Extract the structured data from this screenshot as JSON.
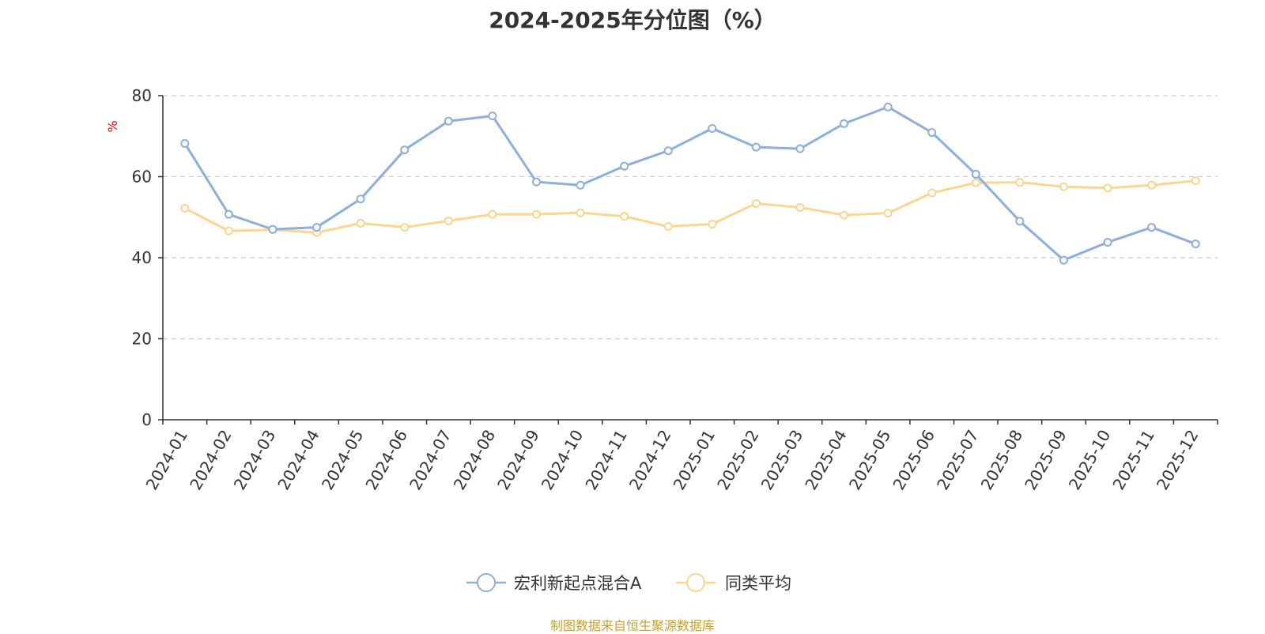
{
  "chart_data": {
    "type": "line",
    "title": "2024-2025年分位图（%）",
    "ylabel": "%",
    "xlabel": "",
    "ylim": [
      0,
      80
    ],
    "yticks": [
      0,
      20,
      40,
      60,
      80
    ],
    "grid": true,
    "legend_position": "bottom-center",
    "categories": [
      "2024-01",
      "2024-02",
      "2024-03",
      "2024-04",
      "2024-05",
      "2024-06",
      "2024-07",
      "2024-08",
      "2024-09",
      "2024-10",
      "2024-11",
      "2024-12",
      "2025-01",
      "2025-02",
      "2025-03",
      "2025-04",
      "2025-05",
      "2025-06",
      "2025-07",
      "2025-08",
      "2025-09",
      "2025-10",
      "2025-11",
      "2025-12"
    ],
    "series": [
      {
        "name": "宏利新起点混合A",
        "color": "#8eaedb",
        "values": [
          68.2,
          50.7,
          47.0,
          47.5,
          54.5,
          66.6,
          73.7,
          75.0,
          58.7,
          57.9,
          62.6,
          66.4,
          71.9,
          67.3,
          66.9,
          73.1,
          77.2,
          70.9,
          60.6,
          49.0,
          39.4,
          43.8,
          47.5,
          43.4
        ]
      },
      {
        "name": "同类平均",
        "color": "#fcd590",
        "values": [
          52.2,
          46.6,
          46.9,
          46.2,
          48.5,
          47.5,
          49.1,
          50.7,
          50.7,
          51.1,
          50.2,
          47.7,
          48.3,
          53.4,
          52.4,
          50.5,
          51.0,
          56.0,
          58.5,
          58.6,
          57.5,
          57.2,
          57.9,
          59.0
        ]
      }
    ]
  },
  "source_note": "制图数据来自恒生聚源数据库",
  "colors": {
    "axis": "#333333",
    "grid": "#cccccc",
    "ylabel": "#ff0000",
    "source": "#c9a227"
  }
}
